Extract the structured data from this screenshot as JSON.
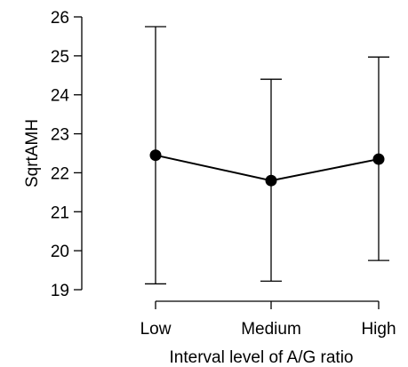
{
  "chart_data": {
    "type": "line",
    "title": "",
    "xlabel": "Interval level of A/G ratio",
    "ylabel": "SqrtAMH",
    "categories": [
      "Low",
      "Medium",
      "High"
    ],
    "series": [
      {
        "values": [
          22.45,
          21.8,
          22.35
        ],
        "error_lower": [
          19.15,
          19.22,
          19.75
        ],
        "error_upper": [
          25.75,
          24.4,
          24.97
        ]
      }
    ],
    "ylim": [
      19,
      26
    ],
    "yticks": [
      19,
      20,
      21,
      22,
      23,
      24,
      25,
      26
    ],
    "grid": false
  }
}
